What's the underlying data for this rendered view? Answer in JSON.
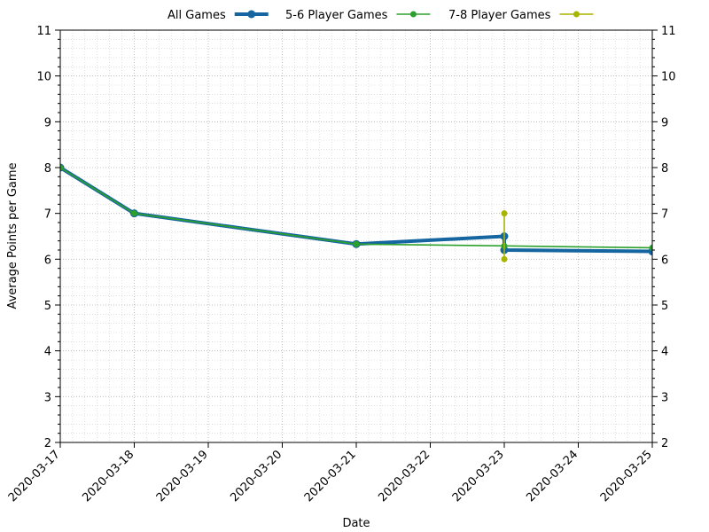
{
  "chart_data": {
    "type": "line",
    "title": "",
    "xlabel": "Date",
    "ylabel": "Average Points per Game",
    "xlim": [
      "2020-03-17",
      "2020-03-25"
    ],
    "ylim": [
      2,
      11
    ],
    "x_ticks": [
      "2020-03-17",
      "2020-03-18",
      "2020-03-19",
      "2020-03-20",
      "2020-03-21",
      "2020-03-22",
      "2020-03-23",
      "2020-03-24",
      "2020-03-25"
    ],
    "y_ticks": [
      2,
      3,
      4,
      5,
      6,
      7,
      8,
      9,
      10,
      11
    ],
    "grid": true,
    "legend_position": "top-center",
    "series": [
      {
        "name": "All Games",
        "color": "#1565a0",
        "style": "thick",
        "points": [
          {
            "x": "2020-03-17",
            "y": 8.0
          },
          {
            "x": "2020-03-18",
            "y": 7.0
          },
          {
            "x": "2020-03-21",
            "y": 6.33
          },
          {
            "x": "2020-03-23",
            "y": 6.5
          },
          {
            "x": "2020-03-23",
            "y": 6.2
          },
          {
            "x": "2020-03-25",
            "y": 6.17
          }
        ]
      },
      {
        "name": "5-6 Player Games",
        "color": "#2ca02c",
        "style": "thin",
        "points": [
          {
            "x": "2020-03-17",
            "y": 8.0
          },
          {
            "x": "2020-03-18",
            "y": 7.0
          },
          {
            "x": "2020-03-21",
            "y": 6.33
          },
          {
            "x": "2020-03-23",
            "y": 6.29
          },
          {
            "x": "2020-03-25",
            "y": 6.25
          }
        ]
      },
      {
        "name": "7-8 Player Games",
        "color": "#a8b400",
        "style": "thin",
        "points": [
          {
            "x": "2020-03-23",
            "y": 7.0
          },
          {
            "x": "2020-03-23",
            "y": 6.0
          }
        ]
      }
    ]
  }
}
